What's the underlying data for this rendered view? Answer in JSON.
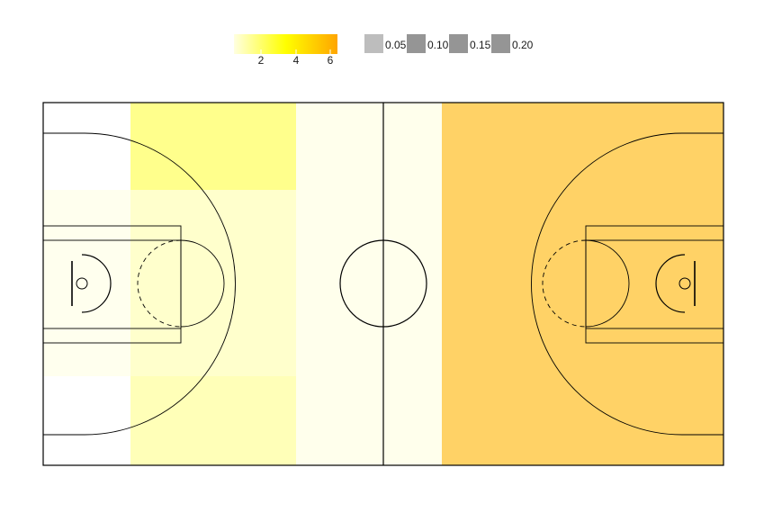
{
  "chart_data": {
    "type": "heatmap",
    "title": "",
    "xlabel": "",
    "ylabel": "",
    "court": {
      "length": 28,
      "width": 15
    },
    "grid": false,
    "colorbar": {
      "colors": [
        "#ffffe0",
        "#ffff00",
        "#ffa500"
      ],
      "range": [
        0.5,
        6.5
      ],
      "ticks": [
        2,
        4,
        6
      ],
      "tick_labels": [
        "2",
        "4",
        "6"
      ]
    },
    "size_legend": {
      "labels": [
        "0.05",
        "0.10",
        "0.15",
        "0.20"
      ],
      "alphas": [
        0.4,
        0.64,
        0.64,
        0.64
      ],
      "color": "#595959"
    },
    "cells": [
      {
        "x": [
          0,
          3.6
        ],
        "y": [
          0,
          3.6
        ],
        "value": 0.5,
        "alpha": 0.0
      },
      {
        "x": [
          0,
          3.6
        ],
        "y": [
          3.6,
          7.5
        ],
        "value": 0.6,
        "alpha": 0.45
      },
      {
        "x": [
          0,
          3.6
        ],
        "y": [
          7.5,
          11.3
        ],
        "value": 0.6,
        "alpha": 0.45
      },
      {
        "x": [
          0,
          3.6
        ],
        "y": [
          11.3,
          15
        ],
        "value": 0.5,
        "alpha": 0.0
      },
      {
        "x": [
          3.6,
          10.4
        ],
        "y": [
          0,
          3.6
        ],
        "value": 3.5,
        "alpha": 0.45
      },
      {
        "x": [
          3.6,
          10.4
        ],
        "y": [
          3.6,
          7.5
        ],
        "value": 1.6,
        "alpha": 0.45
      },
      {
        "x": [
          3.6,
          10.4
        ],
        "y": [
          7.5,
          11.3
        ],
        "value": 1.6,
        "alpha": 0.45
      },
      {
        "x": [
          3.6,
          10.4
        ],
        "y": [
          11.3,
          15
        ],
        "value": 2.2,
        "alpha": 0.45
      },
      {
        "x": [
          10.4,
          16.4
        ],
        "y": [
          0,
          15
        ],
        "value": 0.6,
        "alpha": 0.5
      },
      {
        "x": [
          16.4,
          28
        ],
        "y": [
          0,
          15
        ],
        "value": 6.0,
        "alpha": 0.6
      }
    ]
  }
}
